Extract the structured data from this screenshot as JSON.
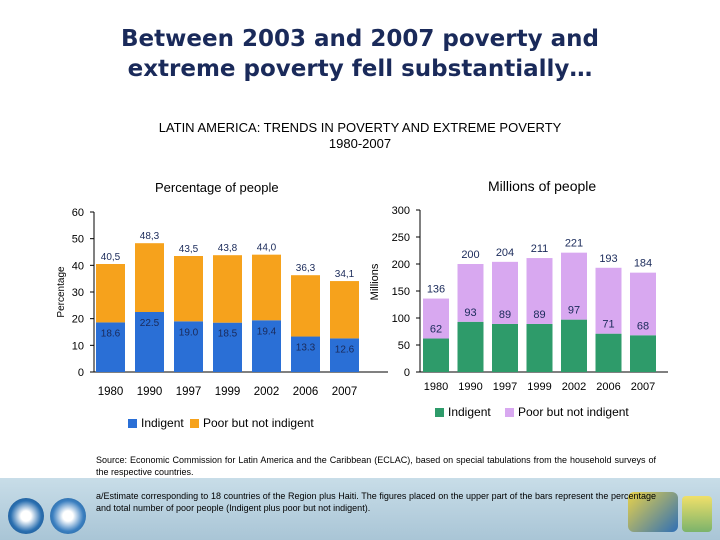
{
  "slide": {
    "title_line1": "Between 2003 and 2007 poverty and",
    "title_line2": "extreme poverty fell substantially…",
    "subtitle_line1": "LATIN AMERICA: TRENDS IN POVERTY AND  EXTREME POVERTY",
    "subtitle_line2": "1980-2007",
    "source": "Source: Economic Commission for Latin America and the Caribbean  (ECLAC), based on special tabulations from  the household surveys of the respective countries.",
    "note": "a/Estimate corresponding to 18 countries of the Region plus Haiti. The figures placed on the upper part of the bars represent the percentage and total number of poor people (Indigent plus poor but not indigent)."
  },
  "colors": {
    "indigent_pct": "#2a6fd6",
    "poor_pct": "#f6a21c",
    "indigent_mil": "#2e9b6a",
    "poor_mil": "#d8a8f0"
  },
  "chart_data": [
    {
      "type": "bar",
      "stacked": true,
      "title": "Percentage of people",
      "ylabel": "Percentage",
      "ylim": [
        0,
        60
      ],
      "yticks": [
        0,
        10,
        20,
        30,
        40,
        50,
        60
      ],
      "categories": [
        "1980",
        "1990",
        "1997",
        "1999",
        "2002",
        "2006",
        "2007"
      ],
      "series": [
        {
          "name": "Indigent",
          "values": [
            18.6,
            22.5,
            19.0,
            18.5,
            19.4,
            13.3,
            12.6
          ],
          "labels": [
            "18.6",
            "22.5",
            "19.0",
            "18.5",
            "19.4",
            "13.3",
            "12.6"
          ]
        },
        {
          "name": "Poor but not indigent",
          "values": [
            21.9,
            25.8,
            24.5,
            25.3,
            24.6,
            23.0,
            21.5
          ]
        }
      ],
      "totals": [
        40.5,
        48.3,
        43.5,
        43.8,
        44.0,
        36.3,
        34.1
      ],
      "total_labels": [
        "40,5",
        "48,3",
        "43,5",
        "43,8",
        "44,0",
        "36,3",
        "34,1"
      ],
      "legend": [
        "Indigent",
        "Poor but not indigent"
      ],
      "legend_position": "bottom"
    },
    {
      "type": "bar",
      "stacked": true,
      "title": "Millions of people",
      "ylabel": "Millions",
      "ylim": [
        0,
        300
      ],
      "yticks": [
        0,
        50,
        100,
        150,
        200,
        250,
        300
      ],
      "categories": [
        "1980",
        "1990",
        "1997",
        "1999",
        "2002",
        "2006",
        "2007"
      ],
      "series": [
        {
          "name": "Indigent",
          "values": [
            62,
            93,
            89,
            89,
            97,
            71,
            68
          ],
          "labels": [
            "62",
            "93",
            "89",
            "89",
            "97",
            "71",
            "68"
          ]
        },
        {
          "name": "Poor but not indigent",
          "values": [
            74,
            107,
            115,
            122,
            124,
            122,
            116
          ]
        }
      ],
      "totals": [
        136,
        200,
        204,
        211,
        221,
        193,
        184
      ],
      "total_labels": [
        "136",
        "200",
        "204",
        "211",
        "221",
        "193",
        "184"
      ],
      "legend": [
        "Indigent",
        "Poor but not indigent"
      ],
      "legend_position": "bottom"
    }
  ]
}
